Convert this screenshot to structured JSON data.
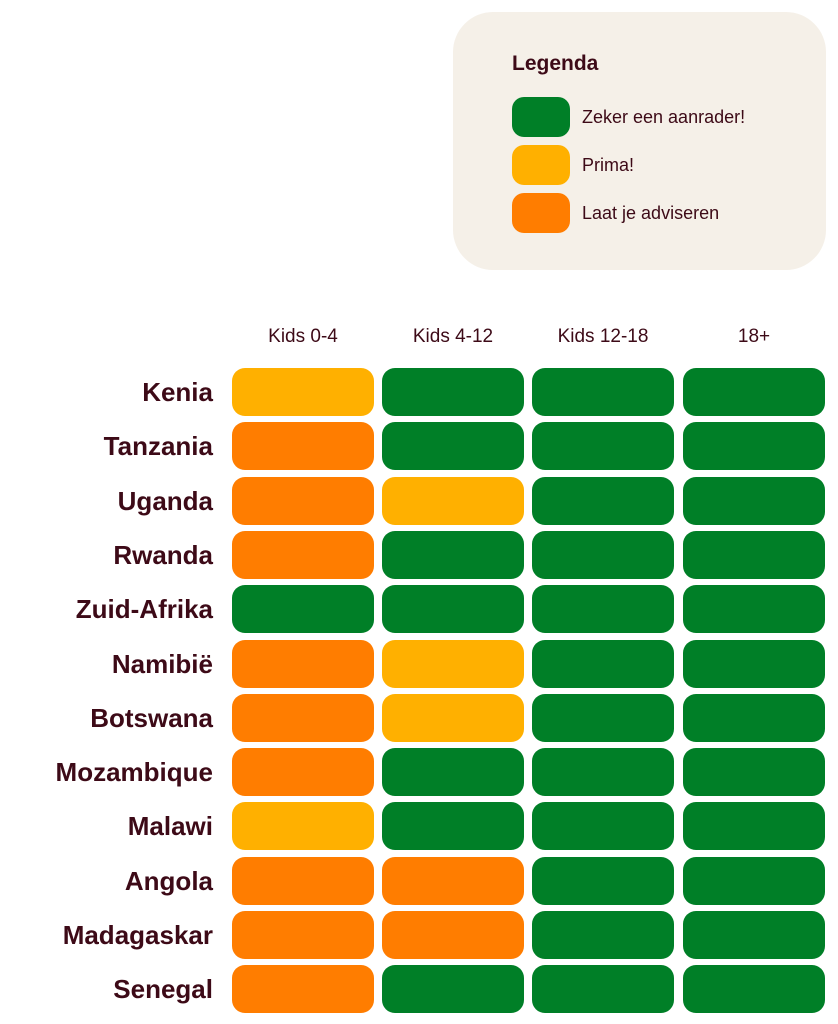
{
  "chart_data": {
    "type": "heatmap",
    "legend": {
      "title": "Legenda",
      "placement": "top-right",
      "items": [
        {
          "key": "G",
          "label": "Zeker een aanrader!",
          "color": "#007f27"
        },
        {
          "key": "Y",
          "label": "Prima!",
          "color": "#ffb000"
        },
        {
          "key": "O",
          "label": "Laat je adviseren",
          "color": "#ff7d00"
        }
      ]
    },
    "columns": [
      "Kids 0-4",
      "Kids 4-12",
      "Kids 12-18",
      "18+"
    ],
    "rows": [
      {
        "label": "Kenia",
        "values": [
          "Y",
          "G",
          "G",
          "G"
        ]
      },
      {
        "label": "Tanzania",
        "values": [
          "O",
          "G",
          "G",
          "G"
        ]
      },
      {
        "label": "Uganda",
        "values": [
          "O",
          "Y",
          "G",
          "G"
        ]
      },
      {
        "label": "Rwanda",
        "values": [
          "O",
          "G",
          "G",
          "G"
        ]
      },
      {
        "label": "Zuid-Afrika",
        "values": [
          "G",
          "G",
          "G",
          "G"
        ]
      },
      {
        "label": "Namibië",
        "values": [
          "O",
          "Y",
          "G",
          "G"
        ]
      },
      {
        "label": "Botswana",
        "values": [
          "O",
          "Y",
          "G",
          "G"
        ]
      },
      {
        "label": "Mozambique",
        "values": [
          "O",
          "G",
          "G",
          "G"
        ]
      },
      {
        "label": "Malawi",
        "values": [
          "Y",
          "G",
          "G",
          "G"
        ]
      },
      {
        "label": "Angola",
        "values": [
          "O",
          "O",
          "G",
          "G"
        ]
      },
      {
        "label": "Madagaskar",
        "values": [
          "O",
          "O",
          "G",
          "G"
        ]
      },
      {
        "label": "Senegal",
        "values": [
          "O",
          "G",
          "G",
          "G"
        ]
      }
    ]
  }
}
